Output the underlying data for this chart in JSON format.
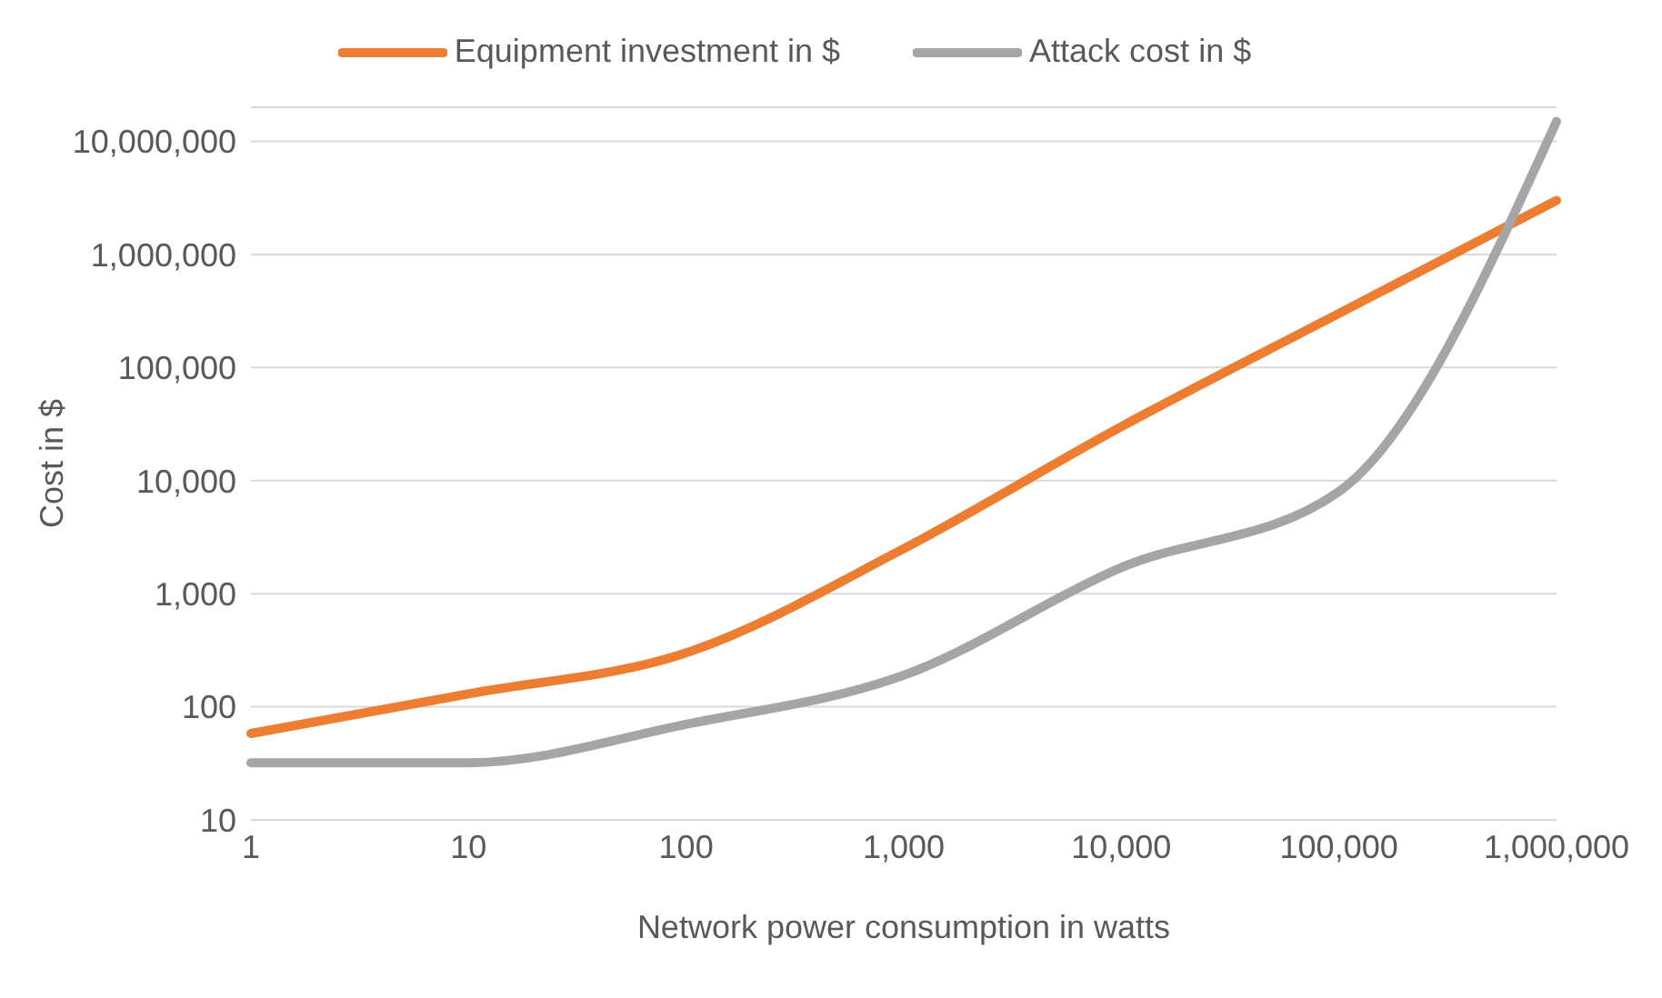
{
  "chart_data": {
    "type": "line",
    "xlabel": "Network power consumption in watts",
    "ylabel": "Cost in $",
    "categories": [
      "1",
      "10",
      "100",
      "1,000",
      "10,000",
      "100,000",
      "1,000,000"
    ],
    "series": [
      {
        "name": "Equipment investment in $",
        "color": "#ed7d31",
        "values": [
          58,
          130,
          300,
          2500,
          30000,
          300000,
          3000000
        ]
      },
      {
        "name": "Attack cost in $",
        "color": "#a5a5a5",
        "values": [
          32,
          32,
          70,
          190,
          1700,
          8000,
          15000000
        ]
      }
    ],
    "log": "y",
    "ylim": [
      10,
      20000000
    ],
    "yticks": [
      10,
      100,
      {
        "value": 1000,
        "label": "1,000"
      },
      {
        "value": 10000,
        "label": "10,000"
      },
      {
        "value": 100000,
        "label": "100,000"
      },
      {
        "value": 1000000,
        "label": "1,000,000"
      },
      {
        "value": 10000000,
        "label": "10,000,000"
      }
    ],
    "grid": "y",
    "legend": "top",
    "marker": "none",
    "line_style": "solid"
  }
}
